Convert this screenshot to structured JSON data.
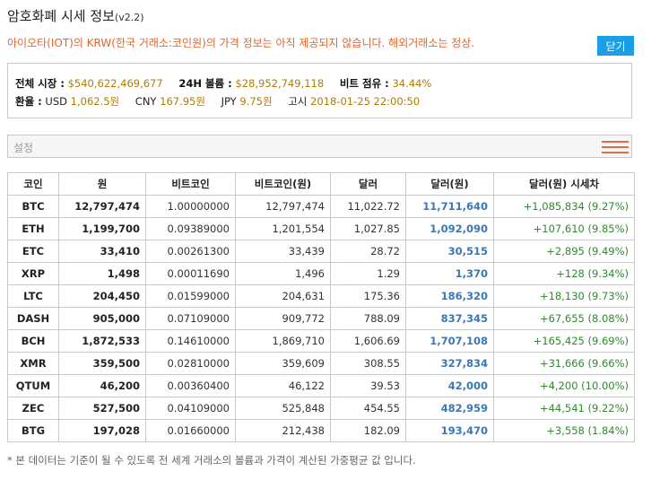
{
  "page": {
    "title": "암호화폐 시세 정보",
    "version": "(v2.2)",
    "notice": "아이오타(IOT)의 KRW(한국 거래소:코인원)의 가격 정보는 아직 제공되지 않습니다. 해외거래소는 정상.",
    "close_label": "닫기"
  },
  "summary": {
    "market_cap_label": "전체 시장 :",
    "market_cap_value": "$540,622,469,677",
    "volume_label": "24H 볼륨 :",
    "volume_value": "$28,952,749,118",
    "btc_share_label": "비트 점유 :",
    "btc_share_value": "34.44%",
    "fx_label": "환율 :",
    "usd_label": "USD",
    "usd_value": "1,062.5원",
    "cny_label": "CNY",
    "cny_value": "167.95원",
    "jpy_label": "JPY",
    "jpy_value": "9.75원",
    "time_label": "고시",
    "time_value": "2018-01-25 22:00:50"
  },
  "settings": {
    "label": "설정"
  },
  "table": {
    "headers": [
      "코인",
      "원",
      "비트코인",
      "비트코인(원)",
      "달러",
      "달러(원)",
      "달러(원) 시세차"
    ],
    "rows": [
      {
        "coin": "BTC",
        "krw": "12,797,474",
        "btc": "1.00000000",
        "btc_krw": "12,797,474",
        "usd": "11,022.72",
        "usd_krw": "11,711,640",
        "diff": "+1,085,834 (9.27%)"
      },
      {
        "coin": "ETH",
        "krw": "1,199,700",
        "btc": "0.09389000",
        "btc_krw": "1,201,554",
        "usd": "1,027.85",
        "usd_krw": "1,092,090",
        "diff": "+107,610 (9.85%)"
      },
      {
        "coin": "ETC",
        "krw": "33,410",
        "btc": "0.00261300",
        "btc_krw": "33,439",
        "usd": "28.72",
        "usd_krw": "30,515",
        "diff": "+2,895 (9.49%)"
      },
      {
        "coin": "XRP",
        "krw": "1,498",
        "btc": "0.00011690",
        "btc_krw": "1,496",
        "usd": "1.29",
        "usd_krw": "1,370",
        "diff": "+128 (9.34%)"
      },
      {
        "coin": "LTC",
        "krw": "204,450",
        "btc": "0.01599000",
        "btc_krw": "204,631",
        "usd": "175.36",
        "usd_krw": "186,320",
        "diff": "+18,130 (9.73%)"
      },
      {
        "coin": "DASH",
        "krw": "905,000",
        "btc": "0.07109000",
        "btc_krw": "909,772",
        "usd": "788.09",
        "usd_krw": "837,345",
        "diff": "+67,655 (8.08%)"
      },
      {
        "coin": "BCH",
        "krw": "1,872,533",
        "btc": "0.14610000",
        "btc_krw": "1,869,710",
        "usd": "1,606.69",
        "usd_krw": "1,707,108",
        "diff": "+165,425 (9.69%)"
      },
      {
        "coin": "XMR",
        "krw": "359,500",
        "btc": "0.02810000",
        "btc_krw": "359,609",
        "usd": "308.55",
        "usd_krw": "327,834",
        "diff": "+31,666 (9.66%)"
      },
      {
        "coin": "QTUM",
        "krw": "46,200",
        "btc": "0.00360400",
        "btc_krw": "46,122",
        "usd": "39.53",
        "usd_krw": "42,000",
        "diff": "+4,200 (10.00%)"
      },
      {
        "coin": "ZEC",
        "krw": "527,500",
        "btc": "0.04109000",
        "btc_krw": "525,848",
        "usd": "454.55",
        "usd_krw": "482,959",
        "diff": "+44,541 (9.22%)"
      },
      {
        "coin": "BTG",
        "krw": "197,028",
        "btc": "0.01660000",
        "btc_krw": "212,438",
        "usd": "182.09",
        "usd_krw": "193,470",
        "diff": "+3,558 (1.84%)"
      }
    ]
  },
  "footnote": "* 본 데이터는 기준이 될 수 있도록 전 세계 거래소의 볼륨과 가격이 계산된 가중평균 값 입니다.",
  "colors": {
    "notice": "#e0662c",
    "close_button": "#1a9ee6",
    "summary_value": "#b07d00",
    "usd_krw": "#3a78b5",
    "diff": "#2e8b2e",
    "menu_icon": "#e8694a"
  },
  "icons": {
    "settings_menu": "hamburger-icon"
  }
}
